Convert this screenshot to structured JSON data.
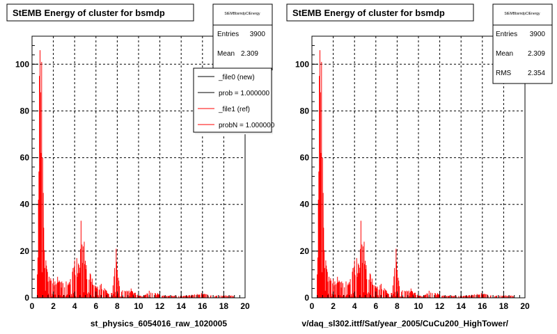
{
  "chart_data": [
    {
      "type": "bar",
      "title": "StEMB Energy of cluster for bsmdp",
      "xlabel": "st_physics_6054016_raw_1020005",
      "ylabel": "",
      "xlim": [
        0,
        20
      ],
      "ylim": [
        0,
        112
      ],
      "xticks": [
        "0",
        "2",
        "4",
        "6",
        "8",
        "10",
        "12",
        "14",
        "16",
        "18",
        "20"
      ],
      "yticks": [
        "0",
        "20",
        "40",
        "60",
        "80",
        "100"
      ],
      "grid": true,
      "stats": {
        "header": "StEMBbsmdpClEnergy",
        "rows": [
          {
            "label": "Entries",
            "value": "3900"
          },
          {
            "label": "Mean",
            "value": "2.309"
          }
        ]
      },
      "legend": {
        "position": "top-right",
        "entries": [
          {
            "label": "_file0 (new)",
            "color": "#000000"
          },
          {
            "label": "prob = 1.000000",
            "color": "#000000"
          },
          {
            "label": "_file1 (ref)",
            "color": "#ff0000"
          },
          {
            "label": "probN = 1.000000",
            "color": "#ff0000"
          }
        ]
      },
      "series": [
        {
          "color": "#ff0000",
          "peaks": [
            [
              0.5,
              10
            ],
            [
              0.6,
              42
            ],
            [
              0.7,
              95
            ],
            [
              0.75,
              106
            ],
            [
              0.8,
              88
            ],
            [
              0.85,
              62
            ],
            [
              0.9,
              101
            ],
            [
              1.0,
              60
            ],
            [
              1.1,
              30
            ],
            [
              1.3,
              16
            ],
            [
              1.6,
              9
            ],
            [
              2.0,
              8
            ],
            [
              2.4,
              9
            ],
            [
              2.8,
              7
            ],
            [
              3.2,
              7
            ],
            [
              3.6,
              8
            ],
            [
              4.0,
              16
            ],
            [
              4.2,
              17
            ],
            [
              4.4,
              14
            ],
            [
              4.6,
              33
            ],
            [
              4.8,
              22
            ],
            [
              4.9,
              24
            ],
            [
              5.1,
              14
            ],
            [
              5.5,
              10
            ],
            [
              6.0,
              5
            ],
            [
              6.5,
              6
            ],
            [
              7.0,
              3
            ],
            [
              7.5,
              2
            ],
            [
              7.9,
              21
            ],
            [
              8.2,
              5
            ],
            [
              8.7,
              3
            ],
            [
              9.3,
              4
            ],
            [
              10.0,
              1
            ],
            [
              10.5,
              1
            ],
            [
              11.0,
              3
            ],
            [
              11.8,
              2
            ],
            [
              12.5,
              1
            ],
            [
              13.5,
              1
            ],
            [
              14.5,
              1
            ],
            [
              15.9,
              2
            ],
            [
              17.0,
              1
            ],
            [
              18.2,
              1
            ],
            [
              19.0,
              1
            ]
          ]
        }
      ]
    },
    {
      "type": "bar",
      "title": "StEMB Energy of cluster for bsmdp",
      "xlabel": "v/daq_sl302.ittf/Sat/year_2005/CuCu200_HighTower/",
      "ylabel": "",
      "xlim": [
        0,
        20
      ],
      "ylim": [
        0,
        112
      ],
      "xticks": [
        "0",
        "2",
        "4",
        "6",
        "8",
        "10",
        "12",
        "14",
        "16",
        "18",
        "20"
      ],
      "yticks": [
        "0",
        "20",
        "40",
        "60",
        "80",
        "100"
      ],
      "grid": true,
      "stats": {
        "header": "StEMBbsmdpClEnergy",
        "rows": [
          {
            "label": "Entries",
            "value": "3900"
          },
          {
            "label": "Mean",
            "value": "2.309"
          },
          {
            "label": "RMS",
            "value": "2.354"
          }
        ]
      },
      "series": [
        {
          "color": "#ff0000",
          "peaks": [
            [
              0.5,
              10
            ],
            [
              0.6,
              42
            ],
            [
              0.7,
              95
            ],
            [
              0.75,
              106
            ],
            [
              0.8,
              88
            ],
            [
              0.85,
              62
            ],
            [
              0.9,
              101
            ],
            [
              1.0,
              60
            ],
            [
              1.1,
              30
            ],
            [
              1.3,
              16
            ],
            [
              1.6,
              9
            ],
            [
              2.0,
              8
            ],
            [
              2.4,
              9
            ],
            [
              2.8,
              7
            ],
            [
              3.2,
              7
            ],
            [
              3.6,
              8
            ],
            [
              4.0,
              16
            ],
            [
              4.2,
              17
            ],
            [
              4.4,
              14
            ],
            [
              4.6,
              33
            ],
            [
              4.8,
              22
            ],
            [
              4.9,
              24
            ],
            [
              5.1,
              14
            ],
            [
              5.5,
              10
            ],
            [
              6.0,
              5
            ],
            [
              6.5,
              6
            ],
            [
              7.0,
              3
            ],
            [
              7.5,
              2
            ],
            [
              7.9,
              21
            ],
            [
              8.2,
              5
            ],
            [
              8.7,
              3
            ],
            [
              9.3,
              4
            ],
            [
              10.0,
              1
            ],
            [
              10.5,
              1
            ],
            [
              11.0,
              3
            ],
            [
              11.8,
              2
            ],
            [
              12.5,
              1
            ],
            [
              13.5,
              1
            ],
            [
              14.5,
              1
            ],
            [
              15.9,
              2
            ],
            [
              17.0,
              1
            ],
            [
              18.2,
              1
            ],
            [
              19.0,
              1
            ]
          ]
        }
      ]
    }
  ]
}
